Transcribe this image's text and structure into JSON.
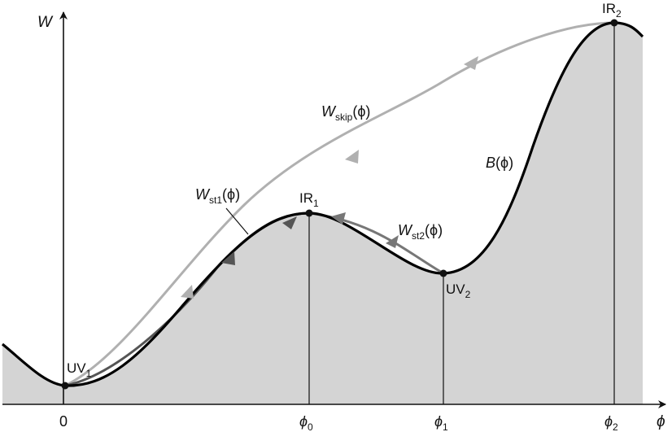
{
  "axes": {
    "y_label": "W",
    "x_label": "ϕ"
  },
  "ticks": [
    {
      "main": "0",
      "sub": ""
    },
    {
      "main": "ϕ",
      "sub": "0"
    },
    {
      "main": "ϕ",
      "sub": "1"
    },
    {
      "main": "ϕ",
      "sub": "2"
    }
  ],
  "points": {
    "uv1": {
      "main": "UV",
      "sub": "1"
    },
    "ir1": {
      "main": "IR",
      "sub": "1"
    },
    "uv2": {
      "main": "UV",
      "sub": "2"
    },
    "ir2": {
      "main": "IR",
      "sub": "2"
    }
  },
  "curves": {
    "b": {
      "main": "B",
      "rest": "(ϕ)"
    },
    "w_skip": {
      "main": "W",
      "sub": "skip",
      "rest": "(ϕ)"
    },
    "w_st1": {
      "main": "W",
      "sub": "st1",
      "rest": "(ϕ)"
    },
    "w_st2": {
      "main": "W",
      "sub": "st2",
      "rest": "(ϕ)"
    }
  },
  "colors": {
    "region_fill": "#d4d4d4",
    "b_curve": "#000000",
    "w_skip": "#b0b0b0",
    "w_st1": "#555555",
    "w_st2": "#777777"
  }
}
